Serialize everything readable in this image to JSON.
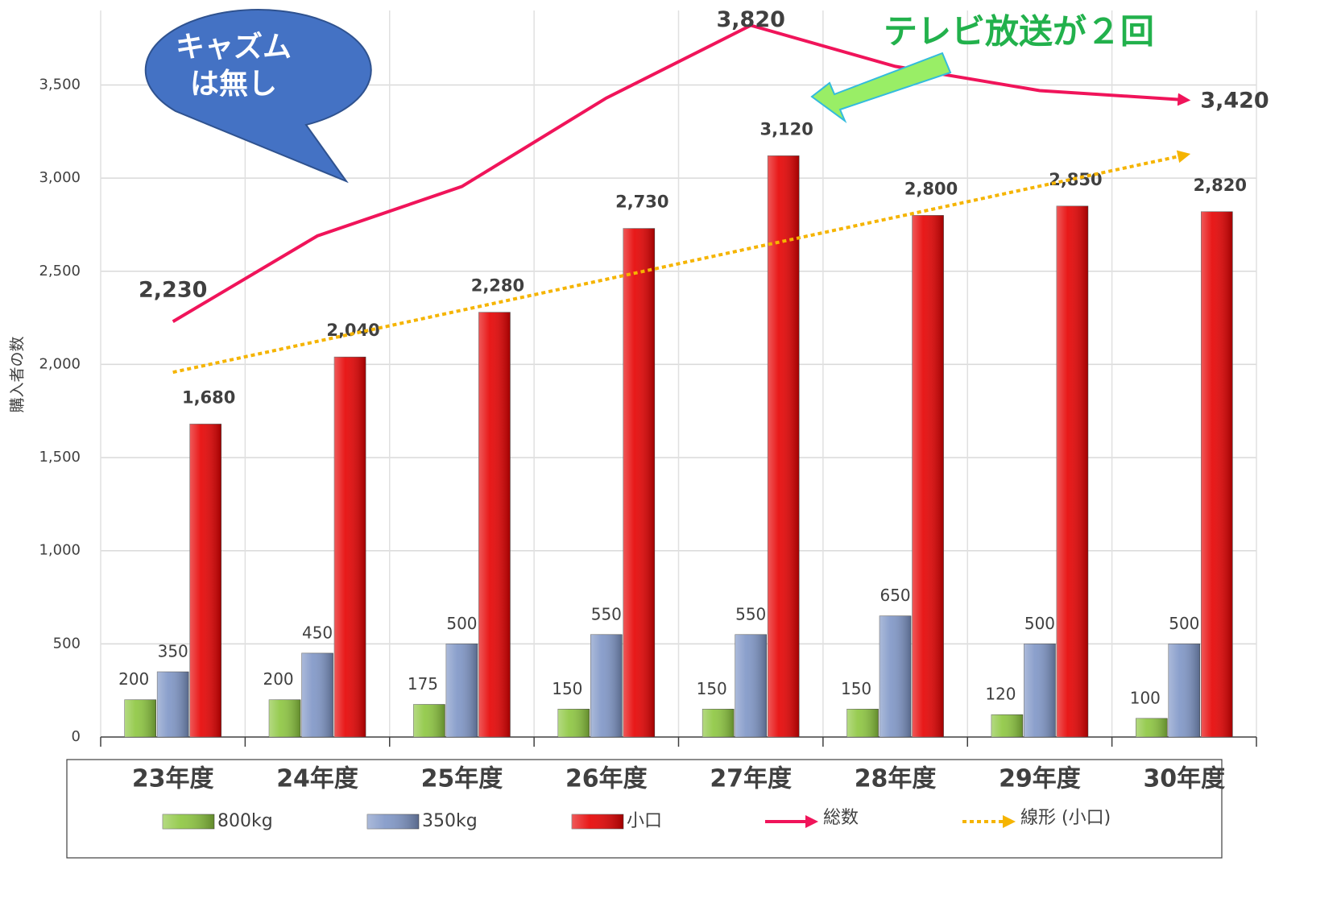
{
  "chart_data": {
    "type": "bar",
    "y_label": "購入者の数",
    "categories": [
      "23年度",
      "24年度",
      "25年度",
      "26年度",
      "27年度",
      "28年度",
      "29年度",
      "30年度"
    ],
    "ylim": [
      0,
      3900
    ],
    "yticks": [
      0,
      500,
      {
        "value": 1000,
        "label": "1,000"
      },
      {
        "value": 1500,
        "label": "1,500"
      },
      {
        "value": 2000,
        "label": "2,000"
      },
      {
        "value": 2500,
        "label": "2,500"
      },
      {
        "value": 3000,
        "label": "3,000"
      },
      {
        "value": 3500,
        "label": "3,500"
      }
    ],
    "grid": true,
    "legend": "bottom",
    "series": [
      {
        "name": "800kg",
        "color": "#8cc63e",
        "values": [
          200,
          200,
          175,
          150,
          150,
          150,
          120,
          100
        ]
      },
      {
        "name": "350kg",
        "color": "#7e95c6",
        "values": [
          350,
          450,
          500,
          550,
          550,
          650,
          500,
          500
        ]
      },
      {
        "name": "小口",
        "color": "#e60000",
        "values": [
          1680,
          2040,
          2280,
          2730,
          3120,
          2800,
          2850,
          2820
        ],
        "value_labels": [
          "1,680",
          "2,040",
          "2,280",
          "2,730",
          "3,120",
          "2,800",
          "2,850",
          "2,820"
        ]
      },
      {
        "name": "総数",
        "type": "line",
        "color": "#f0145a",
        "values": [
          2230,
          2690,
          2955,
          3430,
          3820,
          3600,
          3470,
          3420
        ],
        "value_labels": [
          "2,230",
          null,
          null,
          null,
          "3,820",
          null,
          null,
          "3,420"
        ]
      },
      {
        "name": "線形 (小口)",
        "type": "line",
        "dashed": true,
        "color": "#f5b400",
        "values": [
          1958,
          2124,
          2291,
          2457,
          2624,
          2790,
          2957,
          3123
        ]
      }
    ],
    "annotations": [
      "キャズム",
      "は無し",
      "テレビ放送が２回"
    ]
  }
}
